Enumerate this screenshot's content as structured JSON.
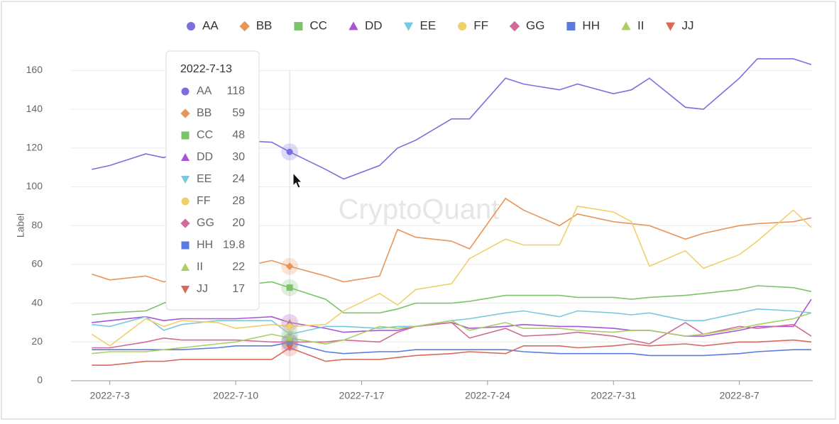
{
  "chart_data": {
    "type": "line",
    "y_label": "Label",
    "watermark": "CryptoQuant",
    "x": [
      "2022-7-2",
      "2022-7-3",
      "2022-7-5",
      "2022-7-6",
      "2022-7-7",
      "2022-7-9",
      "2022-7-10",
      "2022-7-12",
      "2022-7-13",
      "2022-7-15",
      "2022-7-16",
      "2022-7-18",
      "2022-7-19",
      "2022-7-20",
      "2022-7-22",
      "2022-7-23",
      "2022-7-25",
      "2022-7-26",
      "2022-7-28",
      "2022-7-29",
      "2022-7-31",
      "2022-8-1",
      "2022-8-2",
      "2022-8-4",
      "2022-8-5",
      "2022-8-7",
      "2022-8-8",
      "2022-8-10",
      "2022-8-11"
    ],
    "xlim": [
      "2022-7-1",
      "2022-8-11"
    ],
    "xticks": [
      "2022-7-3",
      "2022-7-10",
      "2022-7-17",
      "2022-7-24",
      "2022-7-31",
      "2022-8-7"
    ],
    "ylim": [
      0,
      170
    ],
    "yticks": [
      0,
      20,
      40,
      60,
      80,
      100,
      120,
      140,
      160
    ],
    "grid": true,
    "legend": "top",
    "tooltip_index": 8,
    "series": [
      {
        "name": "AA",
        "color": "#7b6fe0",
        "marker": "circle",
        "values": [
          109,
          111,
          117,
          115,
          119,
          121,
          124,
          123,
          118,
          109,
          104,
          111,
          120,
          124,
          135,
          135,
          156,
          153,
          150,
          153,
          148,
          150,
          156,
          141,
          140,
          156,
          166,
          166,
          163
        ]
      },
      {
        "name": "BB",
        "color": "#e8955a",
        "marker": "diamond",
        "values": [
          55,
          52,
          54,
          51,
          53,
          56,
          58,
          62,
          59,
          54,
          51,
          54,
          78,
          74,
          72,
          68,
          94,
          88,
          80,
          86,
          82,
          81,
          80,
          73,
          76,
          80,
          81,
          82,
          84
        ]
      },
      {
        "name": "CC",
        "color": "#7cc36a",
        "marker": "square",
        "values": [
          34,
          35,
          36,
          40,
          44,
          47,
          49,
          51,
          48,
          42,
          35,
          35,
          37,
          40,
          40,
          41,
          44,
          44,
          44,
          43,
          43,
          42,
          43,
          44,
          45,
          47,
          49,
          48,
          46
        ]
      },
      {
        "name": "DD",
        "color": "#a855d8",
        "marker": "triangle-up",
        "values": [
          30,
          31,
          33,
          31,
          32,
          32,
          32,
          33,
          30,
          27,
          25,
          26,
          26,
          28,
          30,
          27,
          28,
          29,
          28,
          28,
          27,
          26,
          26,
          23,
          23,
          26,
          28,
          28,
          42
        ]
      },
      {
        "name": "EE",
        "color": "#7ac8e0",
        "marker": "triangle-down",
        "values": [
          29,
          28,
          33,
          26,
          29,
          31,
          31,
          31,
          24,
          28,
          28,
          27,
          28,
          28,
          31,
          32,
          35,
          36,
          33,
          36,
          35,
          34,
          35,
          31,
          31,
          35,
          37,
          36,
          35
        ]
      },
      {
        "name": "FF",
        "color": "#efd06a",
        "marker": "circle",
        "values": [
          24,
          18,
          32,
          28,
          31,
          30,
          27,
          29,
          28,
          29,
          36,
          45,
          39,
          47,
          50,
          63,
          73,
          70,
          70,
          90,
          87,
          82,
          59,
          67,
          58,
          65,
          72,
          88,
          79
        ]
      },
      {
        "name": "GG",
        "color": "#d06a9a",
        "marker": "diamond",
        "values": [
          17,
          17,
          20,
          22,
          21,
          21,
          21,
          20,
          20,
          20,
          21,
          20,
          25,
          28,
          30,
          22,
          27,
          23,
          24,
          25,
          23,
          21,
          19,
          30,
          24,
          28,
          27,
          29,
          23
        ]
      },
      {
        "name": "HH",
        "color": "#5b7be0",
        "marker": "square",
        "values": [
          16,
          16,
          16,
          16,
          16,
          17,
          18,
          18,
          19.8,
          15,
          14,
          15,
          15,
          16,
          16,
          16,
          16,
          15,
          14,
          14,
          14,
          14,
          13,
          13,
          13,
          14,
          15,
          16,
          16
        ]
      },
      {
        "name": "II",
        "color": "#a8d060",
        "marker": "triangle-up",
        "values": [
          14,
          15,
          15,
          16,
          17,
          19,
          20,
          24,
          22,
          19,
          21,
          28,
          27,
          28,
          31,
          26,
          30,
          27,
          27,
          26,
          25,
          26,
          26,
          23,
          24,
          27,
          29,
          32,
          35
        ]
      },
      {
        "name": "JJ",
        "color": "#d9695a",
        "marker": "triangle-down",
        "values": [
          8,
          8,
          10,
          10,
          11,
          11,
          11,
          11,
          17,
          10,
          11,
          11,
          12,
          13,
          14,
          15,
          14,
          18,
          18,
          17,
          18,
          19,
          18,
          19,
          18,
          20,
          20,
          21,
          20
        ]
      }
    ]
  }
}
